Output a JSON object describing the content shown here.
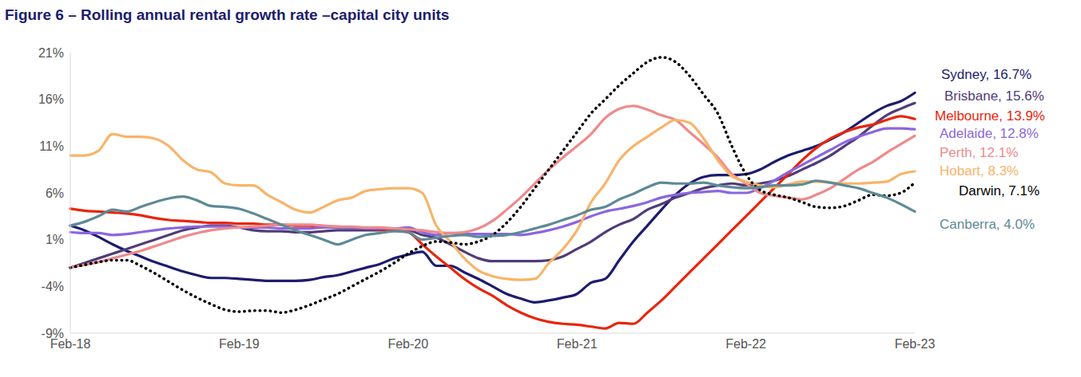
{
  "chart_data": {
    "type": "line",
    "title": "Figure 6 – Rolling annual rental growth rate –capital city units",
    "categories": [
      "Feb-18",
      null,
      null,
      null,
      null,
      null,
      null,
      null,
      null,
      null,
      null,
      null,
      "Feb-19",
      null,
      null,
      null,
      null,
      null,
      null,
      null,
      null,
      null,
      null,
      null,
      "Feb-20",
      null,
      null,
      null,
      null,
      null,
      null,
      null,
      null,
      null,
      null,
      null,
      "Feb-21",
      null,
      null,
      null,
      null,
      null,
      null,
      null,
      null,
      null,
      null,
      null,
      "Feb-22",
      null,
      null,
      null,
      null,
      null,
      null,
      null,
      null,
      null,
      null,
      null,
      "Feb-23"
    ],
    "ylim": [
      -9,
      21
    ],
    "yticks": [
      {
        "value": -9,
        "label": "-9%"
      },
      {
        "value": -4,
        "label": "-4%"
      },
      {
        "value": 1,
        "label": "1%"
      },
      {
        "value": 6,
        "label": "6%"
      },
      {
        "value": 11,
        "label": "11%"
      },
      {
        "value": 16,
        "label": "16%"
      },
      {
        "value": 21,
        "label": "21%"
      }
    ],
    "grid": false,
    "series": [
      {
        "name": "Sydney",
        "color": "#1c1c6e",
        "values": [
          2.5,
          2.0,
          1.3,
          0.5,
          -0.2,
          -0.8,
          -1.4,
          -1.9,
          -2.4,
          -2.8,
          -3.1,
          -3.1,
          -3.2,
          -3.3,
          -3.4,
          -3.4,
          -3.4,
          -3.3,
          -3.0,
          -2.8,
          -2.4,
          -2.0,
          -1.6,
          -1.0,
          -0.6,
          -0.3,
          -1.8,
          -1.8,
          -2.5,
          -3.2,
          -4.0,
          -4.8,
          -5.3,
          -5.7,
          -5.5,
          -5.2,
          -4.8,
          -3.6,
          -3.2,
          -1.2,
          0.8,
          2.5,
          4.2,
          5.8,
          7.0,
          7.7,
          7.9,
          7.9,
          8.0,
          8.5,
          9.3,
          10.0,
          10.5,
          11.0,
          11.7,
          12.5,
          13.5,
          14.5,
          15.3,
          15.8,
          16.7
        ]
      },
      {
        "name": "Brisbane",
        "color": "#503c78",
        "values": [
          -2.0,
          -1.5,
          -1.0,
          -0.5,
          0.0,
          0.5,
          1.0,
          1.5,
          2.0,
          2.3,
          2.5,
          2.5,
          2.3,
          2.0,
          1.9,
          1.9,
          1.8,
          1.8,
          1.9,
          2.0,
          2.0,
          2.0,
          2.0,
          2.0,
          2.0,
          1.5,
          1.2,
          0.5,
          -0.3,
          -1.0,
          -1.3,
          -1.3,
          -1.3,
          -1.3,
          -1.2,
          -0.8,
          0.0,
          0.8,
          1.8,
          2.6,
          3.2,
          4.2,
          4.8,
          5.5,
          6.0,
          6.5,
          6.8,
          7.0,
          6.8,
          7.0,
          7.3,
          7.8,
          8.5,
          9.2,
          10.0,
          11.0,
          12.0,
          13.2,
          14.3,
          15.0,
          15.6
        ]
      },
      {
        "name": "Melbourne",
        "color": "#e8250c",
        "values": [
          4.3,
          4.1,
          4.0,
          3.9,
          3.8,
          3.6,
          3.3,
          3.1,
          3.0,
          2.9,
          2.8,
          2.8,
          2.7,
          2.7,
          2.6,
          2.6,
          2.5,
          2.5,
          2.4,
          2.4,
          2.3,
          2.2,
          2.1,
          2.0,
          1.8,
          0.5,
          -0.8,
          -2.0,
          -3.2,
          -4.2,
          -5.0,
          -6.0,
          -6.8,
          -7.4,
          -7.8,
          -8.0,
          -8.1,
          -8.3,
          -8.5,
          -7.9,
          -8.0,
          -6.8,
          -5.5,
          -4.0,
          -2.5,
          -1.0,
          0.5,
          2.0,
          3.5,
          5.0,
          6.5,
          8.0,
          9.5,
          10.8,
          11.8,
          12.5,
          13.0,
          13.3,
          13.8,
          14.2,
          13.9
        ]
      },
      {
        "name": "Adelaide",
        "color": "#8b66e0",
        "values": [
          1.8,
          1.7,
          1.7,
          1.5,
          1.6,
          1.8,
          2.0,
          2.2,
          2.3,
          2.4,
          2.4,
          2.4,
          2.3,
          2.3,
          2.3,
          2.2,
          2.2,
          2.2,
          2.3,
          2.3,
          2.3,
          2.2,
          2.2,
          2.2,
          2.3,
          1.8,
          1.5,
          1.7,
          1.6,
          1.6,
          1.6,
          1.6,
          1.5,
          1.7,
          2.0,
          2.4,
          2.9,
          3.5,
          4.0,
          4.3,
          4.6,
          5.0,
          5.5,
          5.8,
          6.0,
          6.1,
          6.2,
          6.0,
          6.0,
          6.5,
          7.3,
          8.2,
          9.0,
          9.8,
          10.6,
          11.4,
          12.0,
          12.5,
          12.9,
          12.9,
          12.8
        ]
      },
      {
        "name": "Perth",
        "color": "#ee8a8c",
        "values": [
          -2.0,
          -1.7,
          -1.4,
          -1.0,
          -0.6,
          -0.2,
          0.3,
          0.8,
          1.3,
          1.7,
          2.0,
          2.2,
          2.3,
          2.4,
          2.5,
          2.6,
          2.6,
          2.6,
          2.5,
          2.4,
          2.4,
          2.3,
          2.3,
          2.2,
          2.1,
          2.0,
          1.8,
          1.7,
          1.8,
          2.2,
          3.0,
          4.2,
          5.5,
          7.0,
          8.5,
          9.8,
          11.0,
          12.3,
          14.0,
          15.0,
          15.3,
          14.9,
          14.3,
          13.8,
          12.5,
          11.2,
          9.8,
          8.0,
          7.0,
          6.0,
          5.7,
          5.5,
          5.3,
          5.8,
          6.5,
          7.5,
          8.5,
          9.3,
          10.3,
          11.2,
          12.1
        ]
      },
      {
        "name": "Hobart",
        "color": "#f8b469",
        "values": [
          10.0,
          10.0,
          10.5,
          12.3,
          12.0,
          12.0,
          11.8,
          11.0,
          9.5,
          8.5,
          8.2,
          7.0,
          6.8,
          6.8,
          5.8,
          5.0,
          4.2,
          3.9,
          4.5,
          5.2,
          5.5,
          6.2,
          6.4,
          6.5,
          6.5,
          6.0,
          2.5,
          0.8,
          -1.0,
          -2.3,
          -2.9,
          -3.2,
          -3.3,
          -3.2,
          -1.5,
          0.0,
          2.0,
          5.0,
          7.0,
          9.5,
          11.0,
          12.0,
          13.0,
          13.8,
          13.5,
          11.8,
          9.5,
          7.8,
          7.2,
          6.8,
          6.6,
          6.9,
          7.2,
          7.2,
          7.1,
          7.0,
          7.0,
          7.1,
          7.2,
          8.0,
          8.3
        ]
      },
      {
        "name": "Darwin",
        "color": "#000000",
        "line_style": "dotted",
        "values": [
          -2.0,
          -1.7,
          -1.4,
          -1.2,
          -1.2,
          -1.8,
          -2.6,
          -3.5,
          -4.4,
          -5.2,
          -5.9,
          -6.5,
          -6.7,
          -6.6,
          -6.6,
          -6.8,
          -6.5,
          -6.0,
          -5.4,
          -4.8,
          -4.0,
          -3.2,
          -2.4,
          -1.5,
          -0.5,
          0.3,
          0.8,
          0.7,
          0.5,
          0.8,
          1.5,
          2.8,
          4.5,
          6.5,
          8.5,
          10.5,
          12.5,
          14.5,
          16.0,
          17.5,
          18.8,
          20.0,
          20.5,
          20.0,
          18.5,
          16.5,
          14.5,
          11.0,
          8.0,
          6.3,
          5.8,
          5.5,
          5.0,
          4.5,
          4.4,
          4.6,
          5.2,
          5.8,
          5.7,
          6.0,
          7.1
        ]
      },
      {
        "name": "Canberra",
        "color": "#5e8a96",
        "values": [
          2.5,
          2.9,
          3.5,
          4.2,
          4.0,
          4.5,
          5.0,
          5.4,
          5.6,
          5.2,
          4.6,
          4.5,
          4.3,
          3.8,
          3.2,
          2.6,
          2.0,
          1.5,
          1.0,
          0.5,
          1.0,
          1.5,
          1.7,
          1.9,
          1.8,
          1.0,
          1.2,
          1.4,
          1.5,
          1.3,
          1.4,
          1.5,
          1.8,
          2.2,
          2.6,
          3.1,
          3.6,
          4.2,
          4.5,
          5.3,
          5.9,
          6.6,
          7.1,
          7.0,
          7.0,
          7.1,
          6.8,
          6.6,
          6.5,
          6.6,
          6.8,
          6.8,
          6.9,
          7.3,
          7.1,
          6.8,
          6.5,
          6.0,
          5.5,
          4.8,
          4.0
        ]
      }
    ],
    "annotations": [
      {
        "text": "Sydney, 16.7%",
        "series": "Sydney"
      },
      {
        "text": "Brisbane, 15.6%",
        "series": "Brisbane"
      },
      {
        "text": "Melbourne, 13.9%",
        "series": "Melbourne"
      },
      {
        "text": "Adelaide, 12.8%",
        "series": "Adelaide"
      },
      {
        "text": "Perth, 12.1%",
        "series": "Perth"
      },
      {
        "text": "Hobart, 8.3%",
        "series": "Hobart"
      },
      {
        "text": "Darwin, 7.1%",
        "series": "Darwin"
      },
      {
        "text": "Canberra, 4.0%",
        "series": "Canberra"
      }
    ]
  }
}
